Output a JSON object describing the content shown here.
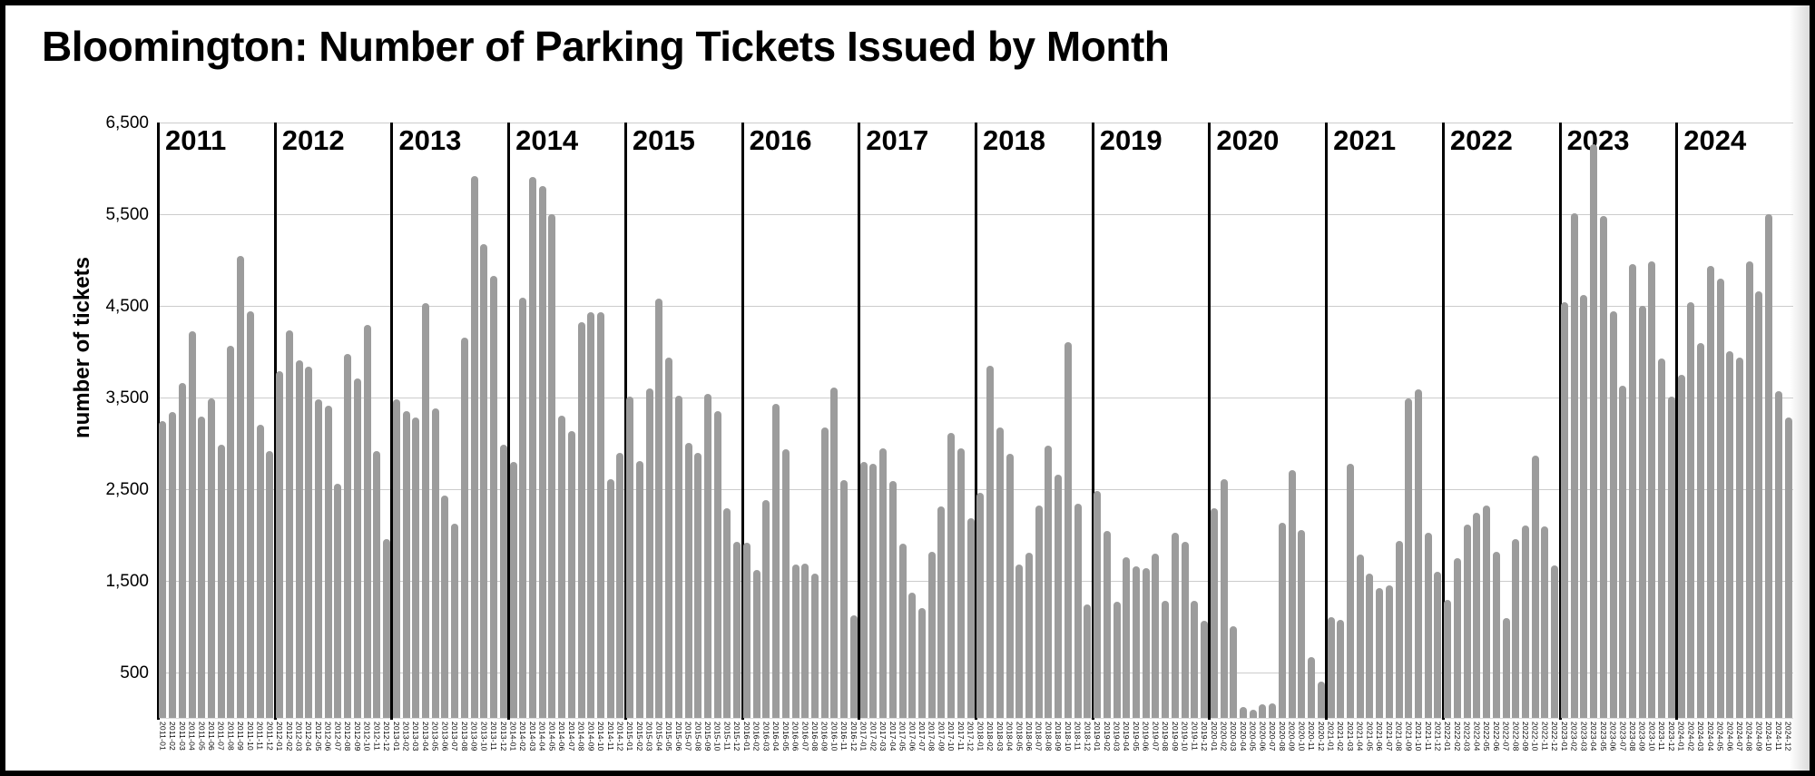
{
  "page": {
    "title": "Bloomington: Number of Parking Tickets Issued by Month"
  },
  "chart_data": {
    "type": "bar",
    "title": "Bloomington: Number of Parking Tickets Issued by Month",
    "xlabel": "",
    "ylabel": "number of tickets",
    "ylim": [
      0,
      6500
    ],
    "grid": true,
    "legend_position": "none",
    "bar_color": "#9c9c9c",
    "gridline_color": "#cccccc",
    "year_divider_color": "#000000",
    "y_ticks": [
      {
        "value": 6500,
        "label": "6,500"
      },
      {
        "value": 5500,
        "label": "5,500"
      },
      {
        "value": 4500,
        "label": "4,500"
      },
      {
        "value": 3500,
        "label": "3,500"
      },
      {
        "value": 2500,
        "label": "2,500"
      },
      {
        "value": 1500,
        "label": "1,500"
      },
      {
        "value": 500,
        "label": "500"
      }
    ],
    "month_suffixes": [
      "01",
      "02",
      "03",
      "04",
      "05",
      "06",
      "07",
      "08",
      "09",
      "10",
      "11",
      "12"
    ],
    "years": [
      {
        "year": "2011",
        "values": [
          3240,
          3340,
          3660,
          4220,
          3290,
          3490,
          2980,
          4060,
          5040,
          4440,
          3200,
          2910
        ]
      },
      {
        "year": "2012",
        "values": [
          3790,
          4230,
          3900,
          3830,
          3480,
          3410,
          2560,
          3970,
          3710,
          4290,
          2910,
          1950
        ]
      },
      {
        "year": "2013",
        "values": [
          3480,
          3350,
          3280,
          4530,
          3380,
          2430,
          2120,
          4150,
          5920,
          5170,
          4830,
          2980
        ]
      },
      {
        "year": "2014",
        "values": [
          2790,
          4590,
          5910,
          5810,
          5500,
          3300,
          3130,
          4320,
          4430,
          4430,
          2610,
          2890
        ]
      },
      {
        "year": "2015",
        "values": [
          3510,
          2800,
          3600,
          4580,
          3930,
          3520,
          3000,
          2890,
          3540,
          3350,
          2290,
          1920
        ]
      },
      {
        "year": "2016",
        "values": [
          1910,
          1620,
          2380,
          3430,
          2930,
          1670,
          1680,
          1580,
          3170,
          3610,
          2600,
          1120
        ]
      },
      {
        "year": "2017",
        "values": [
          2790,
          2770,
          2940,
          2590,
          1900,
          1370,
          1200,
          1810,
          2310,
          3110,
          2940,
          2180
        ]
      },
      {
        "year": "2018",
        "values": [
          2460,
          3840,
          3170,
          2880,
          1670,
          1800,
          2320,
          2970,
          2660,
          4100,
          2340,
          1240
        ]
      },
      {
        "year": "2019",
        "values": [
          2480,
          2040,
          1270,
          1750,
          1650,
          1640,
          1790,
          1280,
          2020,
          1920,
          1280,
          1060
        ]
      },
      {
        "year": "2020",
        "values": [
          2290,
          2610,
          1000,
          120,
          90,
          150,
          160,
          2130,
          2710,
          2050,
          660,
          400
        ]
      },
      {
        "year": "2021",
        "values": [
          1100,
          1070,
          2770,
          1780,
          1580,
          1420,
          1450,
          1930,
          3490,
          3590,
          2020,
          1600
        ]
      },
      {
        "year": "2022",
        "values": [
          1290,
          1740,
          2110,
          2240,
          2320,
          1810,
          1090,
          1950,
          2100,
          2860,
          2090,
          1660
        ]
      },
      {
        "year": "2023",
        "values": [
          4540,
          5510,
          4620,
          6260,
          5480,
          4440,
          3630,
          4950,
          4500,
          4980,
          3920,
          3510
        ]
      },
      {
        "year": "2024",
        "values": [
          3750,
          4540,
          4090,
          4930,
          4800,
          4000,
          3930,
          4980,
          4660,
          5500,
          3570,
          3280
        ]
      }
    ]
  }
}
